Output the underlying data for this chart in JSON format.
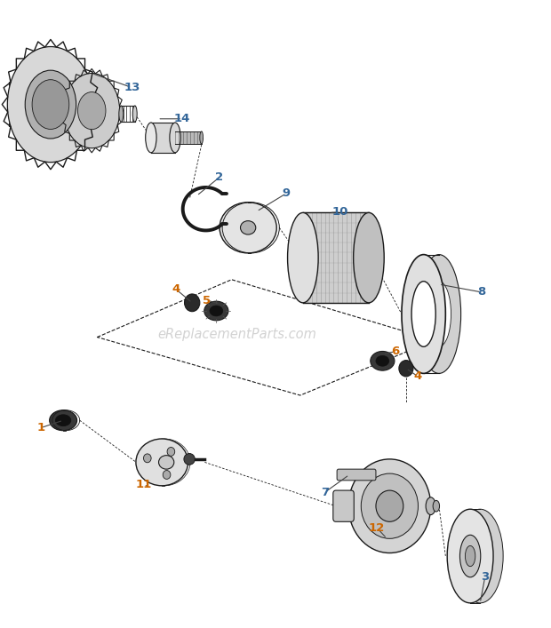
{
  "background_color": "#ffffff",
  "label_color_orange": "#cc6600",
  "label_color_blue": "#336699",
  "watermark_text": "eReplacementParts.com",
  "watermark_color": "#bbbbbb",
  "dark": "#1a1a1a",
  "mid": "#666666",
  "light": "#aaaaaa",
  "label_positions": {
    "1": [
      0.075,
      0.31,
      0.115,
      0.33,
      "orange"
    ],
    "2": [
      0.4,
      0.715,
      0.39,
      0.685,
      "blue"
    ],
    "3": [
      0.88,
      0.078,
      0.865,
      0.11,
      "blue"
    ],
    "4a": [
      0.33,
      0.538,
      0.352,
      0.517,
      "orange"
    ],
    "4b": [
      0.76,
      0.395,
      0.74,
      0.415,
      "orange"
    ],
    "5": [
      0.39,
      0.512,
      0.39,
      0.5,
      "orange"
    ],
    "6": [
      0.72,
      0.435,
      0.7,
      0.425,
      "orange"
    ],
    "7": [
      0.595,
      0.215,
      0.63,
      0.235,
      "blue"
    ],
    "8": [
      0.875,
      0.53,
      0.845,
      0.51,
      "blue"
    ],
    "9": [
      0.525,
      0.69,
      0.5,
      0.665,
      "blue"
    ],
    "10": [
      0.62,
      0.66,
      0.6,
      0.63,
      "blue"
    ],
    "11": [
      0.265,
      0.228,
      0.29,
      0.258,
      "orange"
    ],
    "12": [
      0.69,
      0.158,
      0.71,
      0.188,
      "orange"
    ],
    "13": [
      0.24,
      0.86,
      0.195,
      0.84,
      "blue"
    ],
    "14": [
      0.335,
      0.81,
      0.315,
      0.785,
      "blue"
    ]
  }
}
